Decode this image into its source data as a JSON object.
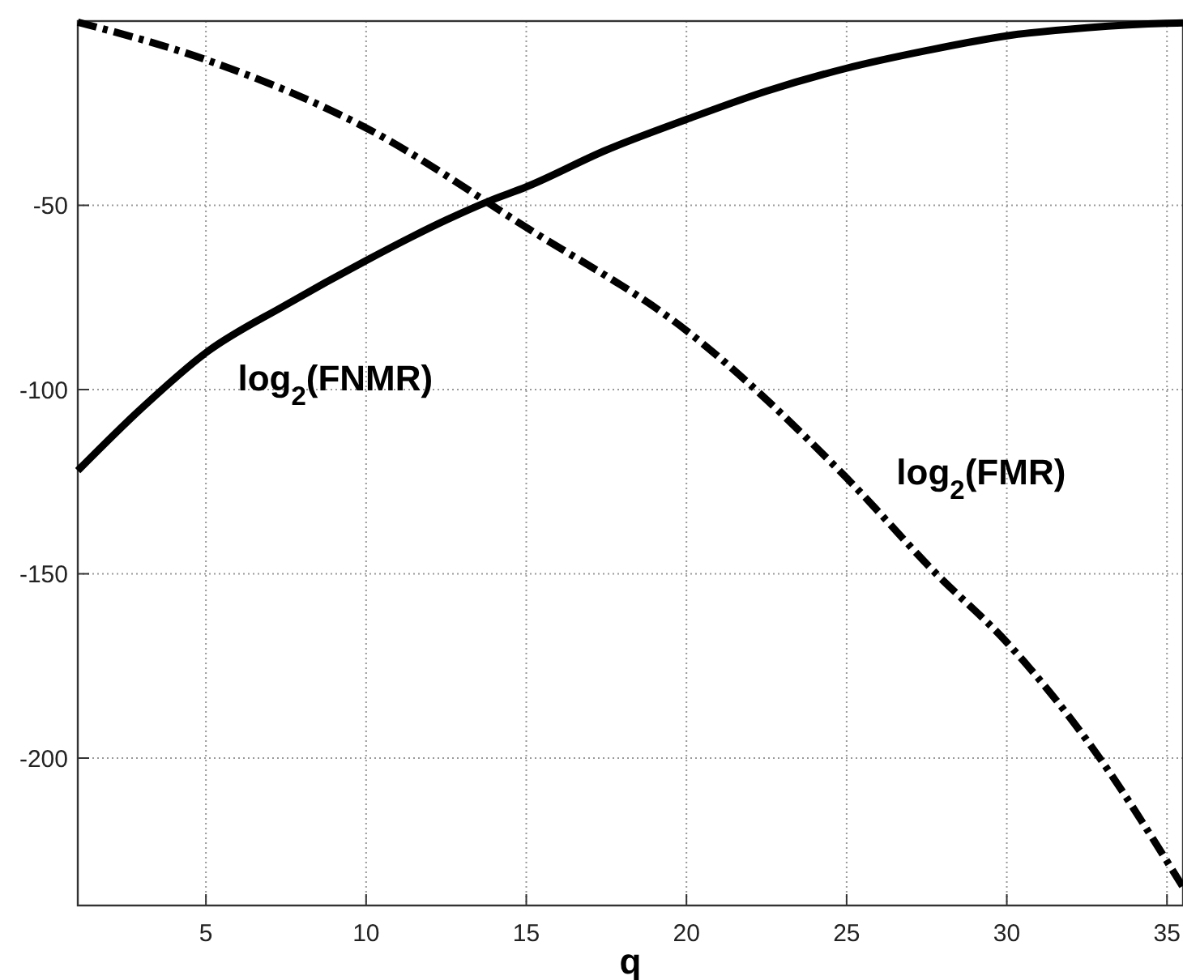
{
  "chart_data": {
    "type": "line",
    "xlabel": "q",
    "xlim": [
      1,
      35.5
    ],
    "ylim": [
      -240,
      0
    ],
    "xticks": [
      5,
      10,
      15,
      20,
      25,
      30,
      35
    ],
    "yticks": [
      {
        "value": 0,
        "label": null
      },
      -50,
      -100,
      -150,
      -200
    ],
    "grid": true,
    "series": [
      {
        "name": "log$_{2}$(FNMR)",
        "color": "#000000",
        "line_style": "solid",
        "x": [
          1,
          3,
          5,
          7.5,
          10,
          12.5,
          13.85,
          15,
          17.5,
          20,
          22.5,
          25,
          27.5,
          30,
          32.5,
          35,
          35.5
        ],
        "values": [
          -122,
          -105,
          -90,
          -77,
          -65,
          -54,
          -48.8,
          -45,
          -35,
          -26.7,
          -19,
          -12.8,
          -8,
          -4,
          -1.8,
          -0.6,
          -0.5
        ]
      },
      {
        "name": "log$_{2}$(FMR)",
        "color": "#000000",
        "line_style": "dashed",
        "x": [
          1,
          5,
          10,
          15,
          20,
          25,
          27.8,
          30,
          32.9,
          35,
          35.5
        ],
        "values": [
          -0.3,
          -10.5,
          -29,
          -56,
          -84,
          -124,
          -150,
          -168.6,
          -200,
          -228,
          -235
        ]
      }
    ]
  }
}
